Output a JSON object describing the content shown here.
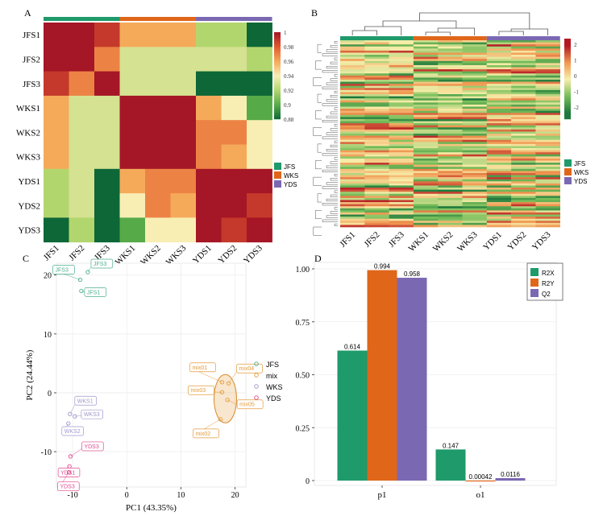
{
  "panel_labels": {
    "a": "A",
    "b": "B",
    "c": "C",
    "d": "D"
  },
  "colors": {
    "JFS": "#1f9a6a",
    "WKS": "#e0661a",
    "YDS": "#7b68b2"
  },
  "chart_data": [
    {
      "type": "heatmap",
      "panel": "A",
      "rows": [
        "JFS1",
        "JFS2",
        "JFS3",
        "WKS1",
        "WKS2",
        "WKS3",
        "YDS1",
        "YDS2",
        "YDS3"
      ],
      "columns": [
        "JFS1",
        "JFS2",
        "JFS3",
        "WKS1",
        "WKS2",
        "WKS3",
        "YDS1",
        "YDS2",
        "YDS3"
      ],
      "values": [
        [
          1.0,
          1.0,
          0.99,
          0.96,
          0.96,
          0.96,
          0.92,
          0.92,
          0.88
        ],
        [
          1.0,
          1.0,
          0.97,
          0.93,
          0.93,
          0.93,
          0.93,
          0.93,
          0.92
        ],
        [
          0.99,
          0.97,
          1.0,
          0.93,
          0.93,
          0.93,
          0.86,
          0.86,
          0.79
        ],
        [
          0.96,
          0.93,
          0.93,
          1.0,
          1.0,
          1.0,
          0.96,
          0.94,
          0.9
        ],
        [
          0.96,
          0.93,
          0.93,
          1.0,
          1.0,
          1.0,
          0.97,
          0.97,
          0.94
        ],
        [
          0.96,
          0.93,
          0.93,
          1.0,
          1.0,
          1.0,
          0.97,
          0.96,
          0.94
        ],
        [
          0.92,
          0.93,
          0.86,
          0.96,
          0.97,
          0.97,
          1.0,
          1.0,
          1.0
        ],
        [
          0.92,
          0.93,
          0.86,
          0.94,
          0.97,
          0.96,
          1.0,
          1.0,
          0.99
        ],
        [
          0.88,
          0.92,
          0.79,
          0.9,
          0.94,
          0.94,
          1.0,
          0.99,
          1.0
        ]
      ],
      "colorbar_ticks": [
        "1",
        "0.98",
        "0.96",
        "0.94",
        "0.92",
        "0.9",
        "0.88"
      ],
      "legend": [
        "JFS",
        "WKS",
        "YDS"
      ]
    },
    {
      "type": "heatmap",
      "panel": "B",
      "columns": [
        "JFS1",
        "JFS2",
        "JFS3",
        "WKS1",
        "WKS2",
        "WKS3",
        "YDS1",
        "YDS2",
        "YDS3"
      ],
      "colorbar_ticks": [
        "2",
        "1",
        "0",
        "-1",
        "-2"
      ],
      "legend": [
        "JFS",
        "WKS",
        "YDS"
      ]
    },
    {
      "type": "scatter",
      "panel": "C",
      "xlabel": "PC1 (43.35%)",
      "ylabel": "PC2 (24.44%)",
      "xlim": [
        -13,
        22
      ],
      "ylim": [
        -16,
        22
      ],
      "xticks": [
        "-10",
        "0",
        "10",
        "20"
      ],
      "yticks": [
        "-10",
        "0",
        "10",
        "20"
      ],
      "series": [
        {
          "name": "JFS",
          "points": [
            {
              "x": -8.6,
              "y": 19.2,
              "label": "JFS3"
            },
            {
              "x": -7.2,
              "y": 20.5,
              "label": "JFS3"
            },
            {
              "x": -8.4,
              "y": 17.3,
              "label": "JFS1"
            }
          ]
        },
        {
          "name": "mix",
          "points": [
            {
              "x": 17.6,
              "y": 1.8,
              "label": "mix01"
            },
            {
              "x": 18.8,
              "y": 1.6,
              "label": "mix04"
            },
            {
              "x": 17.6,
              "y": 0.1,
              "label": "mix03"
            },
            {
              "x": 18.6,
              "y": -1.2,
              "label": "mix05"
            },
            {
              "x": 17.3,
              "y": -4.5,
              "label": "mix02"
            }
          ]
        },
        {
          "name": "WKS",
          "points": [
            {
              "x": -10.5,
              "y": -3.6,
              "label": "WKS1"
            },
            {
              "x": -9.6,
              "y": -4.0,
              "label": "WKS3"
            },
            {
              "x": -10.8,
              "y": -5.2,
              "label": "WKS2"
            }
          ]
        },
        {
          "name": "YDS",
          "points": [
            {
              "x": -10.4,
              "y": -10.8,
              "label": "YDS3"
            },
            {
              "x": -10.6,
              "y": -12.5,
              "label": "YDS1"
            },
            {
              "x": -10.7,
              "y": -13.5,
              "label": "YDS3"
            }
          ]
        }
      ],
      "legend": [
        "JFS",
        "mix",
        "WKS",
        "YDS"
      ]
    },
    {
      "type": "bar",
      "panel": "D",
      "categories": [
        "p1",
        "o1"
      ],
      "ylim": [
        0,
        1.0
      ],
      "yticks": [
        "0",
        "0.25",
        "0.50",
        "0.75",
        "1.00"
      ],
      "series": [
        {
          "name": "R2X",
          "values": [
            0.614,
            0.147
          ],
          "labels": [
            "0.614",
            "0.147"
          ]
        },
        {
          "name": "R2Y",
          "values": [
            0.994,
            0.00042
          ],
          "labels": [
            "0.994",
            "0.00042"
          ]
        },
        {
          "name": "Q2",
          "values": [
            0.958,
            0.0116
          ],
          "labels": [
            "0.958",
            "0.0116"
          ]
        }
      ],
      "legend": [
        "R2X",
        "R2Y",
        "Q2"
      ]
    }
  ]
}
